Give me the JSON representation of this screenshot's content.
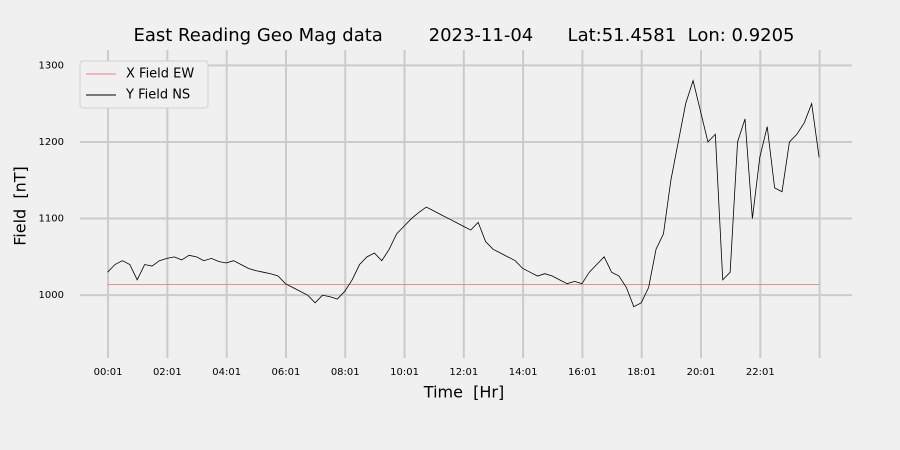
{
  "chart_data": {
    "type": "line",
    "title": "East Reading Geo Mag data        2023-11-04      Lat:51.4581  Lon: 0.9205",
    "x_label": "Time  [Hr]",
    "y_label": "Field  [nT]",
    "x": [
      0,
      0.25,
      0.5,
      0.75,
      1,
      1.25,
      1.5,
      1.75,
      2,
      2.25,
      2.5,
      2.75,
      3,
      3.25,
      3.5,
      3.75,
      4,
      4.25,
      4.5,
      4.75,
      5,
      5.25,
      5.5,
      5.75,
      6,
      6.25,
      6.5,
      6.75,
      7,
      7.25,
      7.5,
      7.75,
      8,
      8.25,
      8.5,
      8.75,
      9,
      9.25,
      9.5,
      9.75,
      10,
      10.25,
      10.5,
      10.75,
      11,
      11.25,
      11.5,
      11.75,
      12,
      12.25,
      12.5,
      12.75,
      13,
      13.25,
      13.5,
      13.75,
      14,
      14.25,
      14.5,
      14.75,
      15,
      15.25,
      15.5,
      15.75,
      16,
      16.25,
      16.5,
      16.75,
      17,
      17.25,
      17.5,
      17.75,
      18,
      18.25,
      18.5,
      18.75,
      19,
      19.25,
      19.5,
      19.75,
      20,
      20.25,
      20.5,
      20.75,
      21,
      21.25,
      21.5,
      21.75,
      22,
      22.25,
      22.5,
      22.75,
      23,
      23.25,
      23.5,
      23.75,
      24
    ],
    "series": [
      {
        "name": "X Field EW",
        "color": "#f08080",
        "values": [
          1014,
          1014,
          1014,
          1014,
          1014,
          1014,
          1014,
          1014,
          1014,
          1014,
          1014,
          1014,
          1014,
          1014,
          1014,
          1014,
          1014,
          1014,
          1014,
          1014,
          1014,
          1014,
          1014,
          1014,
          1014,
          1014,
          1014,
          1014,
          1014,
          1014,
          1014,
          1014,
          1014,
          1014,
          1014,
          1014,
          1014,
          1014,
          1014,
          1014,
          1014,
          1014,
          1014,
          1014,
          1014,
          1014,
          1014,
          1014,
          1014,
          1014,
          1014,
          1014,
          1014,
          1014,
          1014,
          1014,
          1014,
          1014,
          1014,
          1014,
          1014,
          1014,
          1014,
          1014,
          1014,
          1014,
          1014,
          1014,
          1014,
          1014,
          1014,
          1014,
          1014,
          1014,
          1014,
          1014,
          1014,
          1014,
          1014,
          1014,
          1014,
          1014,
          1014,
          1014,
          1014,
          1014,
          1014,
          1014,
          1014,
          1014,
          1014,
          1014,
          1014,
          1014,
          1014,
          1014,
          1014
        ]
      },
      {
        "name": "Y Field NS",
        "color": "#000000",
        "values": [
          1030,
          1040,
          1045,
          1040,
          1020,
          1040,
          1038,
          1045,
          1048,
          1050,
          1046,
          1052,
          1050,
          1045,
          1048,
          1044,
          1042,
          1045,
          1040,
          1035,
          1032,
          1030,
          1028,
          1025,
          1015,
          1010,
          1005,
          1000,
          990,
          1000,
          998,
          995,
          1005,
          1020,
          1040,
          1050,
          1055,
          1045,
          1060,
          1080,
          1090,
          1100,
          1108,
          1115,
          1110,
          1105,
          1100,
          1095,
          1090,
          1085,
          1095,
          1070,
          1060,
          1055,
          1050,
          1045,
          1035,
          1030,
          1025,
          1028,
          1025,
          1020,
          1015,
          1018,
          1015,
          1030,
          1040,
          1050,
          1030,
          1025,
          1010,
          985,
          990,
          1010,
          1060,
          1080,
          1150,
          1200,
          1250,
          1280,
          1240,
          1200,
          1210,
          1020,
          1030,
          1200,
          1230,
          1100,
          1180,
          1220,
          1140,
          1135,
          1200,
          1210,
          1225,
          1250,
          1180
        ]
      }
    ],
    "xlim": [
      -0.93,
      25.11
    ],
    "ylim": [
      918,
      1320
    ],
    "xticks": [
      {
        "value": 0.0167,
        "label": "00:01"
      },
      {
        "value": 2.0167,
        "label": "02:01"
      },
      {
        "value": 4.0167,
        "label": "04:01"
      },
      {
        "value": 6.0167,
        "label": "06:01"
      },
      {
        "value": 8.0167,
        "label": "08:01"
      },
      {
        "value": 10.0167,
        "label": "10:01"
      },
      {
        "value": 12.0167,
        "label": "12:01"
      },
      {
        "value": 14.0167,
        "label": "14:01"
      },
      {
        "value": 16.0167,
        "label": "16:01"
      },
      {
        "value": 18.0167,
        "label": "18:01"
      },
      {
        "value": 20.0167,
        "label": "20:01"
      },
      {
        "value": 22.0167,
        "label": "22:01"
      },
      {
        "value": 24.0167,
        "label": null
      }
    ],
    "yticks": [
      1000,
      1100,
      1200,
      1300
    ],
    "grid": true,
    "legend": "upper-left"
  }
}
